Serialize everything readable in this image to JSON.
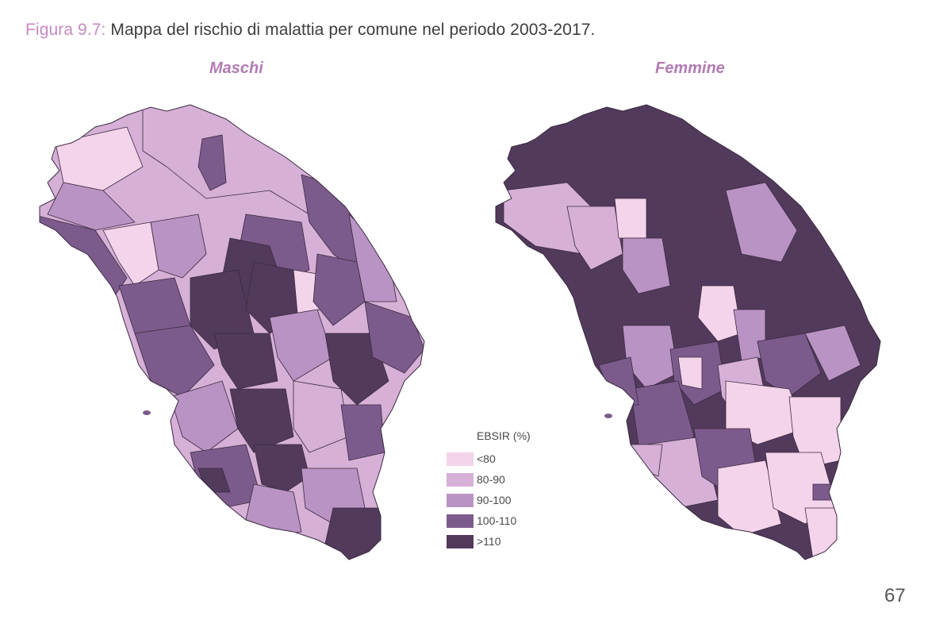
{
  "caption": {
    "figure_label": "Figura 9.7:",
    "text": " Mappa del rischio di malattia per comune nel periodo 2003-2017."
  },
  "maps": [
    {
      "title": "Maschi"
    },
    {
      "title": "Femmine"
    }
  ],
  "legend": {
    "title": "EBSIR (%)",
    "classes": [
      {
        "label": "<80",
        "color": "#f4d4ea"
      },
      {
        "label": "80-90",
        "color": "#d6b0d7"
      },
      {
        "label": "90-100",
        "color": "#b993c3"
      },
      {
        "label": "100-110",
        "color": "#7c5b8c"
      },
      {
        "label": ">110",
        "color": "#523a5c"
      }
    ]
  },
  "page_number": "67"
}
